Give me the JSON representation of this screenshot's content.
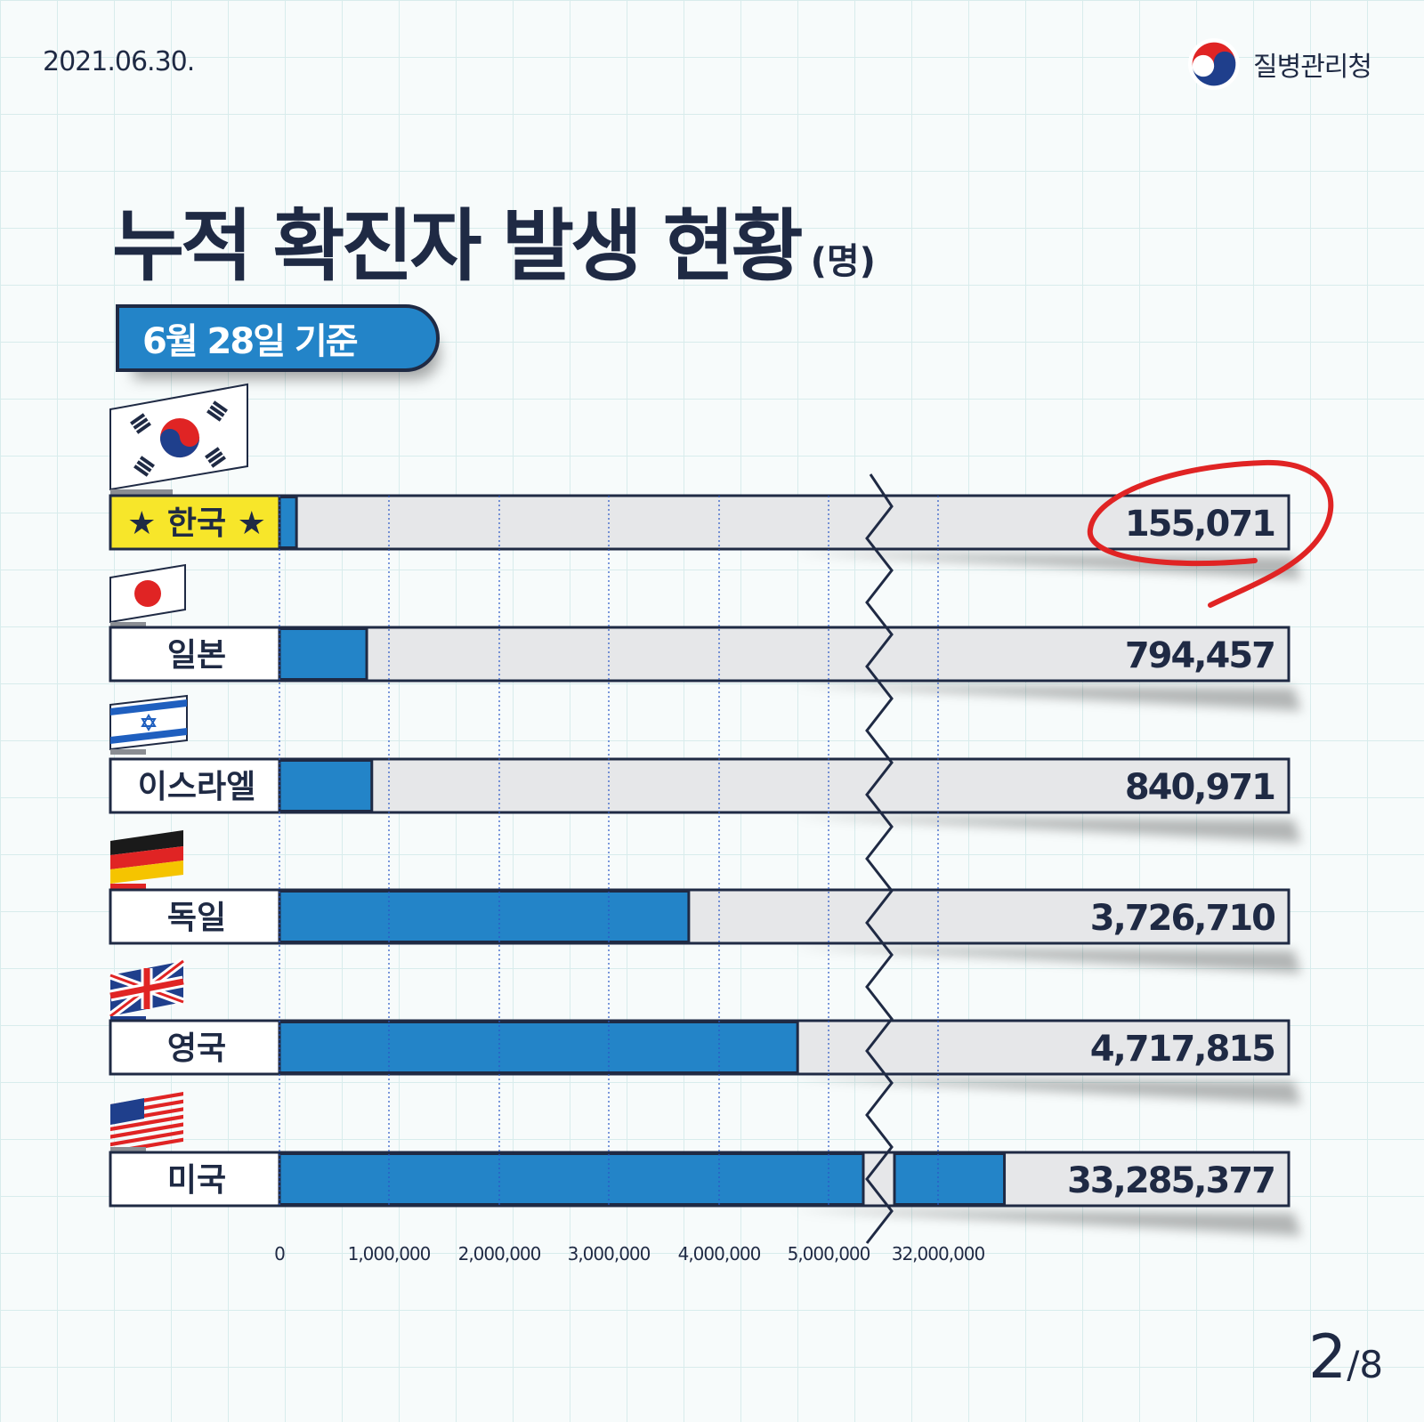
{
  "header": {
    "date": "2021.06.30.",
    "org_name": "질병관리청"
  },
  "title": {
    "main": "누적 확진자 발생 현황",
    "unit": "(명)"
  },
  "badge": {
    "label": "6월 28일 기준"
  },
  "pagination": {
    "current": "2",
    "separator": "/",
    "total": "8"
  },
  "colors": {
    "bar_fill": "#2384c8",
    "bar_track": "#e6e7e9",
    "outline": "#1f2a44",
    "highlight_label": "#f7e62a",
    "highlight_circle": "#e02424"
  },
  "chart_data": {
    "type": "bar",
    "orientation": "horizontal",
    "axis_break": {
      "from": 5000000,
      "to": 32000000
    },
    "x_ticks": [
      "0",
      "1,000,000",
      "2,000,000",
      "3,000,000",
      "4,000,000",
      "5,000,000",
      "32,000,000"
    ],
    "highlighted_category": "한국",
    "categories": [
      "한국",
      "일본",
      "이스라엘",
      "독일",
      "영국",
      "미국"
    ],
    "flags": [
      "south-korea-flag-icon",
      "japan-flag-icon",
      "israel-flag-icon",
      "germany-flag-icon",
      "uk-flag-icon",
      "usa-flag-icon"
    ],
    "values": [
      155071,
      794457,
      840971,
      3726710,
      4717815,
      33285377
    ],
    "value_labels": [
      "155,071",
      "794,457",
      "840,971",
      "3,726,710",
      "4,717,815",
      "33,285,377"
    ]
  }
}
